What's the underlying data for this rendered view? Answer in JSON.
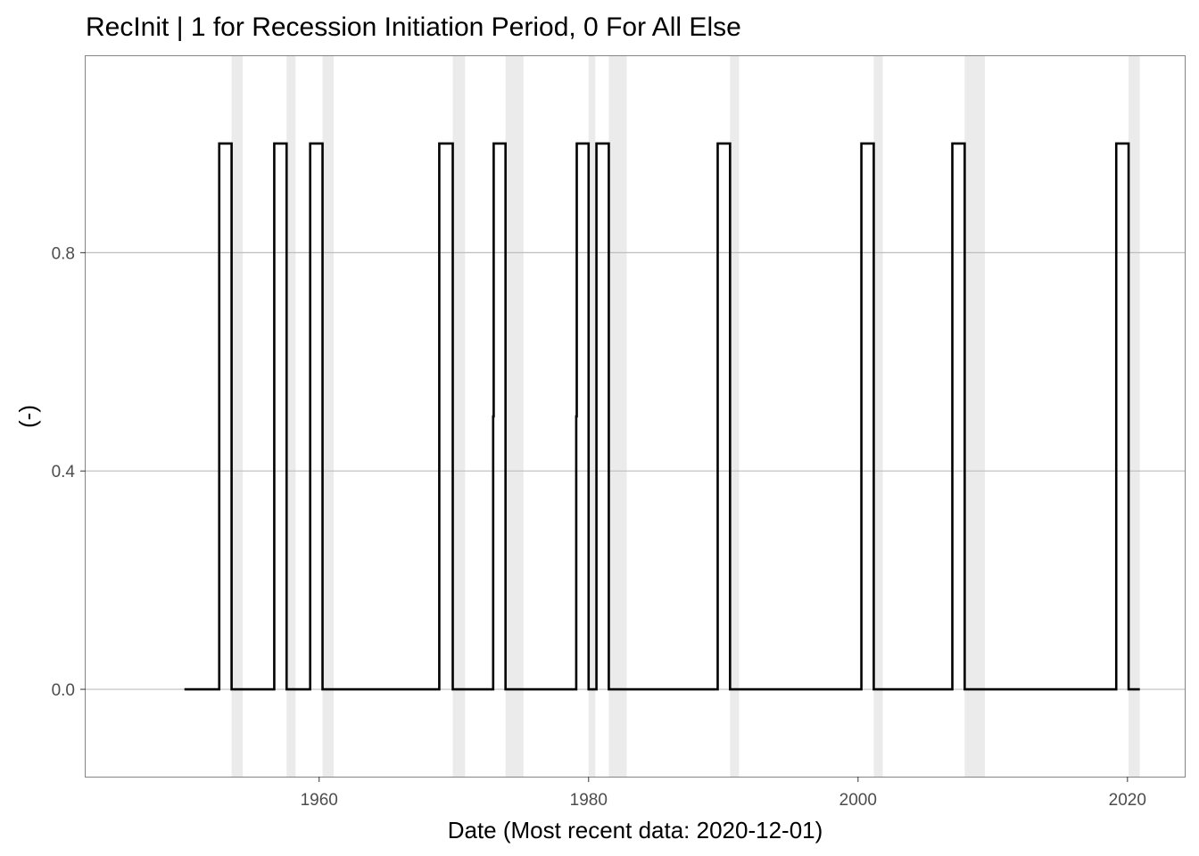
{
  "chart_data": {
    "type": "line",
    "title": "RecInit | 1 for Recession Initiation Period, 0 For All Else",
    "xlabel": "Date (Most recent data: 2020-12-01)",
    "ylabel": "(-)",
    "x_axis": {
      "type": "date",
      "range": [
        "1942-09-01",
        "2024-04-01"
      ],
      "ticks": [
        1960,
        1980,
        2000,
        2020
      ]
    },
    "y_axis": {
      "range": [
        -0.16,
        1.16
      ],
      "ticks": [
        0.0,
        0.4,
        0.8
      ],
      "tick_labels": [
        "0.0",
        "0.4",
        "0.8"
      ]
    },
    "grid": true,
    "recession_shading": [
      [
        "1953-07-01",
        "1954-05-01"
      ],
      [
        "1957-08-01",
        "1958-04-01"
      ],
      [
        "1960-04-01",
        "1961-02-01"
      ],
      [
        "1969-12-01",
        "1970-11-01"
      ],
      [
        "1973-11-01",
        "1975-03-01"
      ],
      [
        "1980-01-01",
        "1980-07-01"
      ],
      [
        "1981-07-01",
        "1982-11-01"
      ],
      [
        "1990-07-01",
        "1991-03-01"
      ],
      [
        "2001-03-01",
        "2001-11-01"
      ],
      [
        "2007-12-01",
        "2009-06-01"
      ],
      [
        "2020-02-01",
        "2020-12-01"
      ]
    ],
    "series": [
      {
        "type": "step",
        "points": [
          [
            "1950-01-01",
            0
          ],
          [
            "1952-08-01",
            0
          ],
          [
            "1952-08-01",
            1
          ],
          [
            "1953-07-01",
            1
          ],
          [
            "1953-07-01",
            0
          ],
          [
            "1956-09-01",
            0
          ],
          [
            "1956-09-01",
            1
          ],
          [
            "1957-08-01",
            1
          ],
          [
            "1957-08-01",
            0
          ],
          [
            "1959-05-01",
            0
          ],
          [
            "1959-05-01",
            1
          ],
          [
            "1960-04-01",
            1
          ],
          [
            "1960-04-01",
            0
          ],
          [
            "1968-12-01",
            0
          ],
          [
            "1968-12-01",
            1
          ],
          [
            "1969-12-01",
            1
          ],
          [
            "1969-12-01",
            0
          ],
          [
            "1972-12-01",
            0
          ],
          [
            "1972-12-01",
            0.5
          ],
          [
            "1972-12-15",
            0.5
          ],
          [
            "1972-12-15",
            1
          ],
          [
            "1973-11-01",
            1
          ],
          [
            "1973-11-01",
            0
          ],
          [
            "1979-02-01",
            0
          ],
          [
            "1979-02-01",
            0.5
          ],
          [
            "1979-02-15",
            0.5
          ],
          [
            "1979-02-15",
            1
          ],
          [
            "1980-01-01",
            1
          ],
          [
            "1980-01-01",
            0
          ],
          [
            "1980-08-01",
            0
          ],
          [
            "1980-08-01",
            1
          ],
          [
            "1981-07-01",
            1
          ],
          [
            "1981-07-01",
            0
          ],
          [
            "1989-08-01",
            0
          ],
          [
            "1989-08-01",
            1
          ],
          [
            "1990-07-01",
            1
          ],
          [
            "1990-07-01",
            0
          ],
          [
            "2000-04-01",
            0
          ],
          [
            "2000-04-01",
            1
          ],
          [
            "2001-03-01",
            1
          ],
          [
            "2001-03-01",
            0
          ],
          [
            "2007-01-01",
            0
          ],
          [
            "2007-01-01",
            1
          ],
          [
            "2007-12-01",
            1
          ],
          [
            "2007-12-01",
            0
          ],
          [
            "2019-03-01",
            0
          ],
          [
            "2019-03-01",
            1
          ],
          [
            "2020-02-01",
            1
          ],
          [
            "2020-02-01",
            0
          ],
          [
            "2020-12-01",
            0
          ]
        ]
      }
    ]
  }
}
